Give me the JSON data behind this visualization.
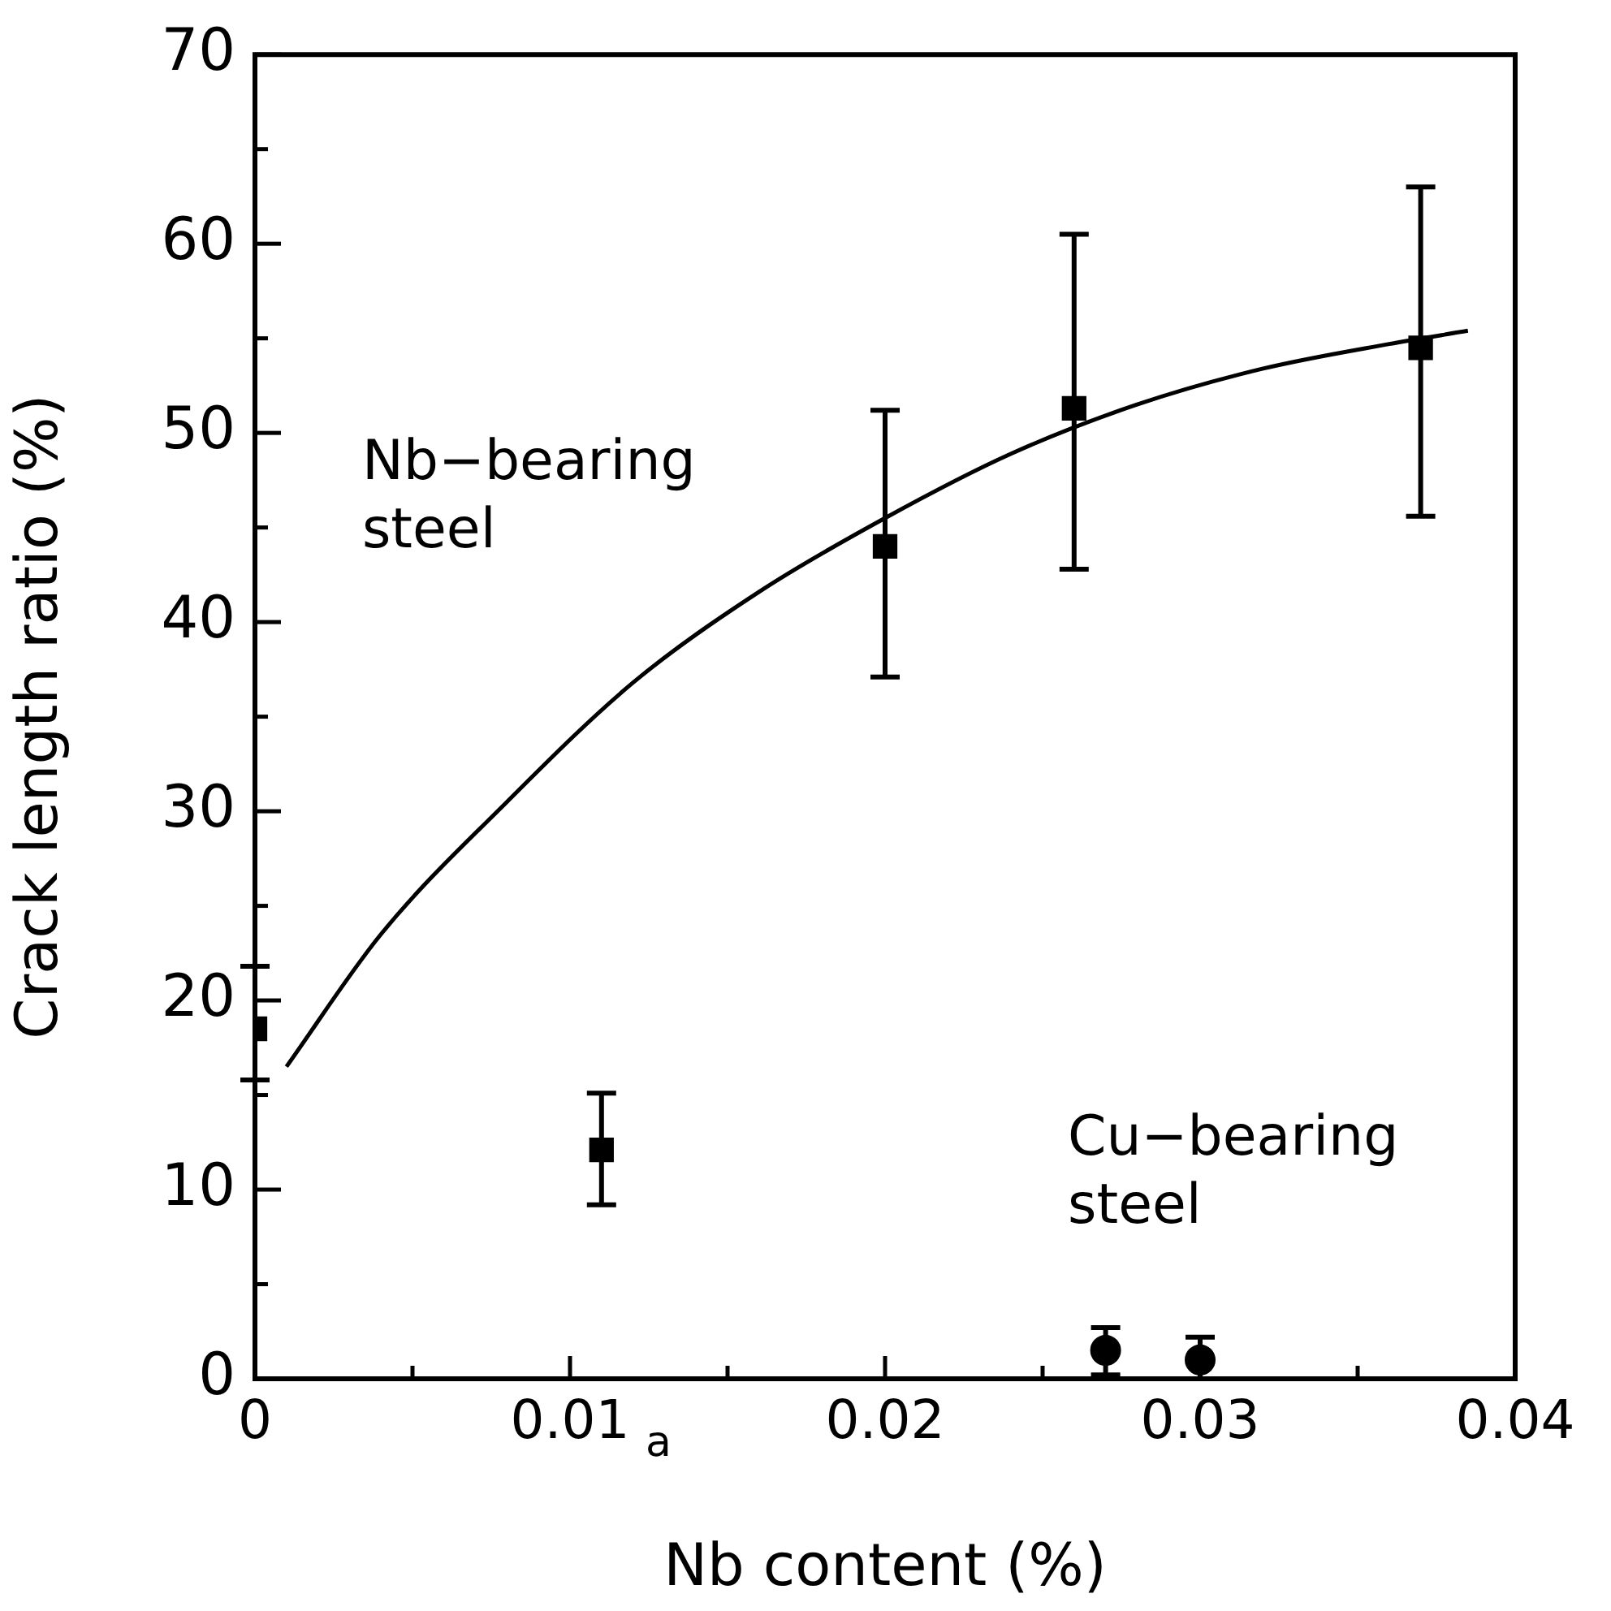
{
  "chart_data": {
    "type": "scatter",
    "xlabel": "Nb content (%)",
    "ylabel": "Crack length ratio (%)",
    "xlim": [
      0,
      0.04
    ],
    "ylim": [
      0,
      70
    ],
    "xticks": [
      0,
      {
        "value": 0.005,
        "label": null
      },
      0.01,
      {
        "value": 0.015,
        "label": null
      },
      0.02,
      {
        "value": 0.025,
        "label": null
      },
      0.03,
      {
        "value": 0.035,
        "label": null
      },
      0.04
    ],
    "yticks": [
      0,
      {
        "value": 5,
        "label": null
      },
      10,
      {
        "value": 15,
        "label": null
      },
      20,
      {
        "value": 25,
        "label": null
      },
      30,
      {
        "value": 35,
        "label": null
      },
      40,
      {
        "value": 45,
        "label": null
      },
      50,
      {
        "value": 55,
        "label": null
      },
      60,
      {
        "value": 65,
        "label": null
      },
      70
    ],
    "grid": false,
    "legend": false,
    "series": [
      {
        "marker": "square",
        "color": "#000000",
        "x": [
          0,
          0.011,
          0.02,
          0.026,
          0.037
        ],
        "values": [
          18.5,
          12.1,
          44.0,
          51.3,
          54.5
        ],
        "errors": [
          [
            15.8,
            21.8
          ],
          [
            9.2,
            15.1
          ],
          [
            37.1,
            51.2
          ],
          [
            42.8,
            60.5
          ],
          [
            45.6,
            63.0
          ]
        ]
      },
      {
        "marker": "circle",
        "color": "#000000",
        "x": [
          0.027,
          0.03
        ],
        "values": [
          1.5,
          1.0
        ],
        "errors": [
          [
            0.2,
            2.7
          ],
          [
            0,
            2.2
          ]
        ]
      },
      {
        "type": "line",
        "marker": "none",
        "line_style": "solid",
        "color": "#000000",
        "x": [
          0.001,
          0.004,
          0.008,
          0.012,
          0.016,
          0.02,
          0.024,
          0.028,
          0.032,
          0.036,
          0.0385
        ],
        "values": [
          16.5,
          23.5,
          30.5,
          36.8,
          41.6,
          45.5,
          48.9,
          51.5,
          53.4,
          54.7,
          55.4
        ]
      }
    ],
    "annotations": [
      "Nb−bearing\nsteel",
      "Cu−bearing\nsteel",
      "a"
    ]
  }
}
